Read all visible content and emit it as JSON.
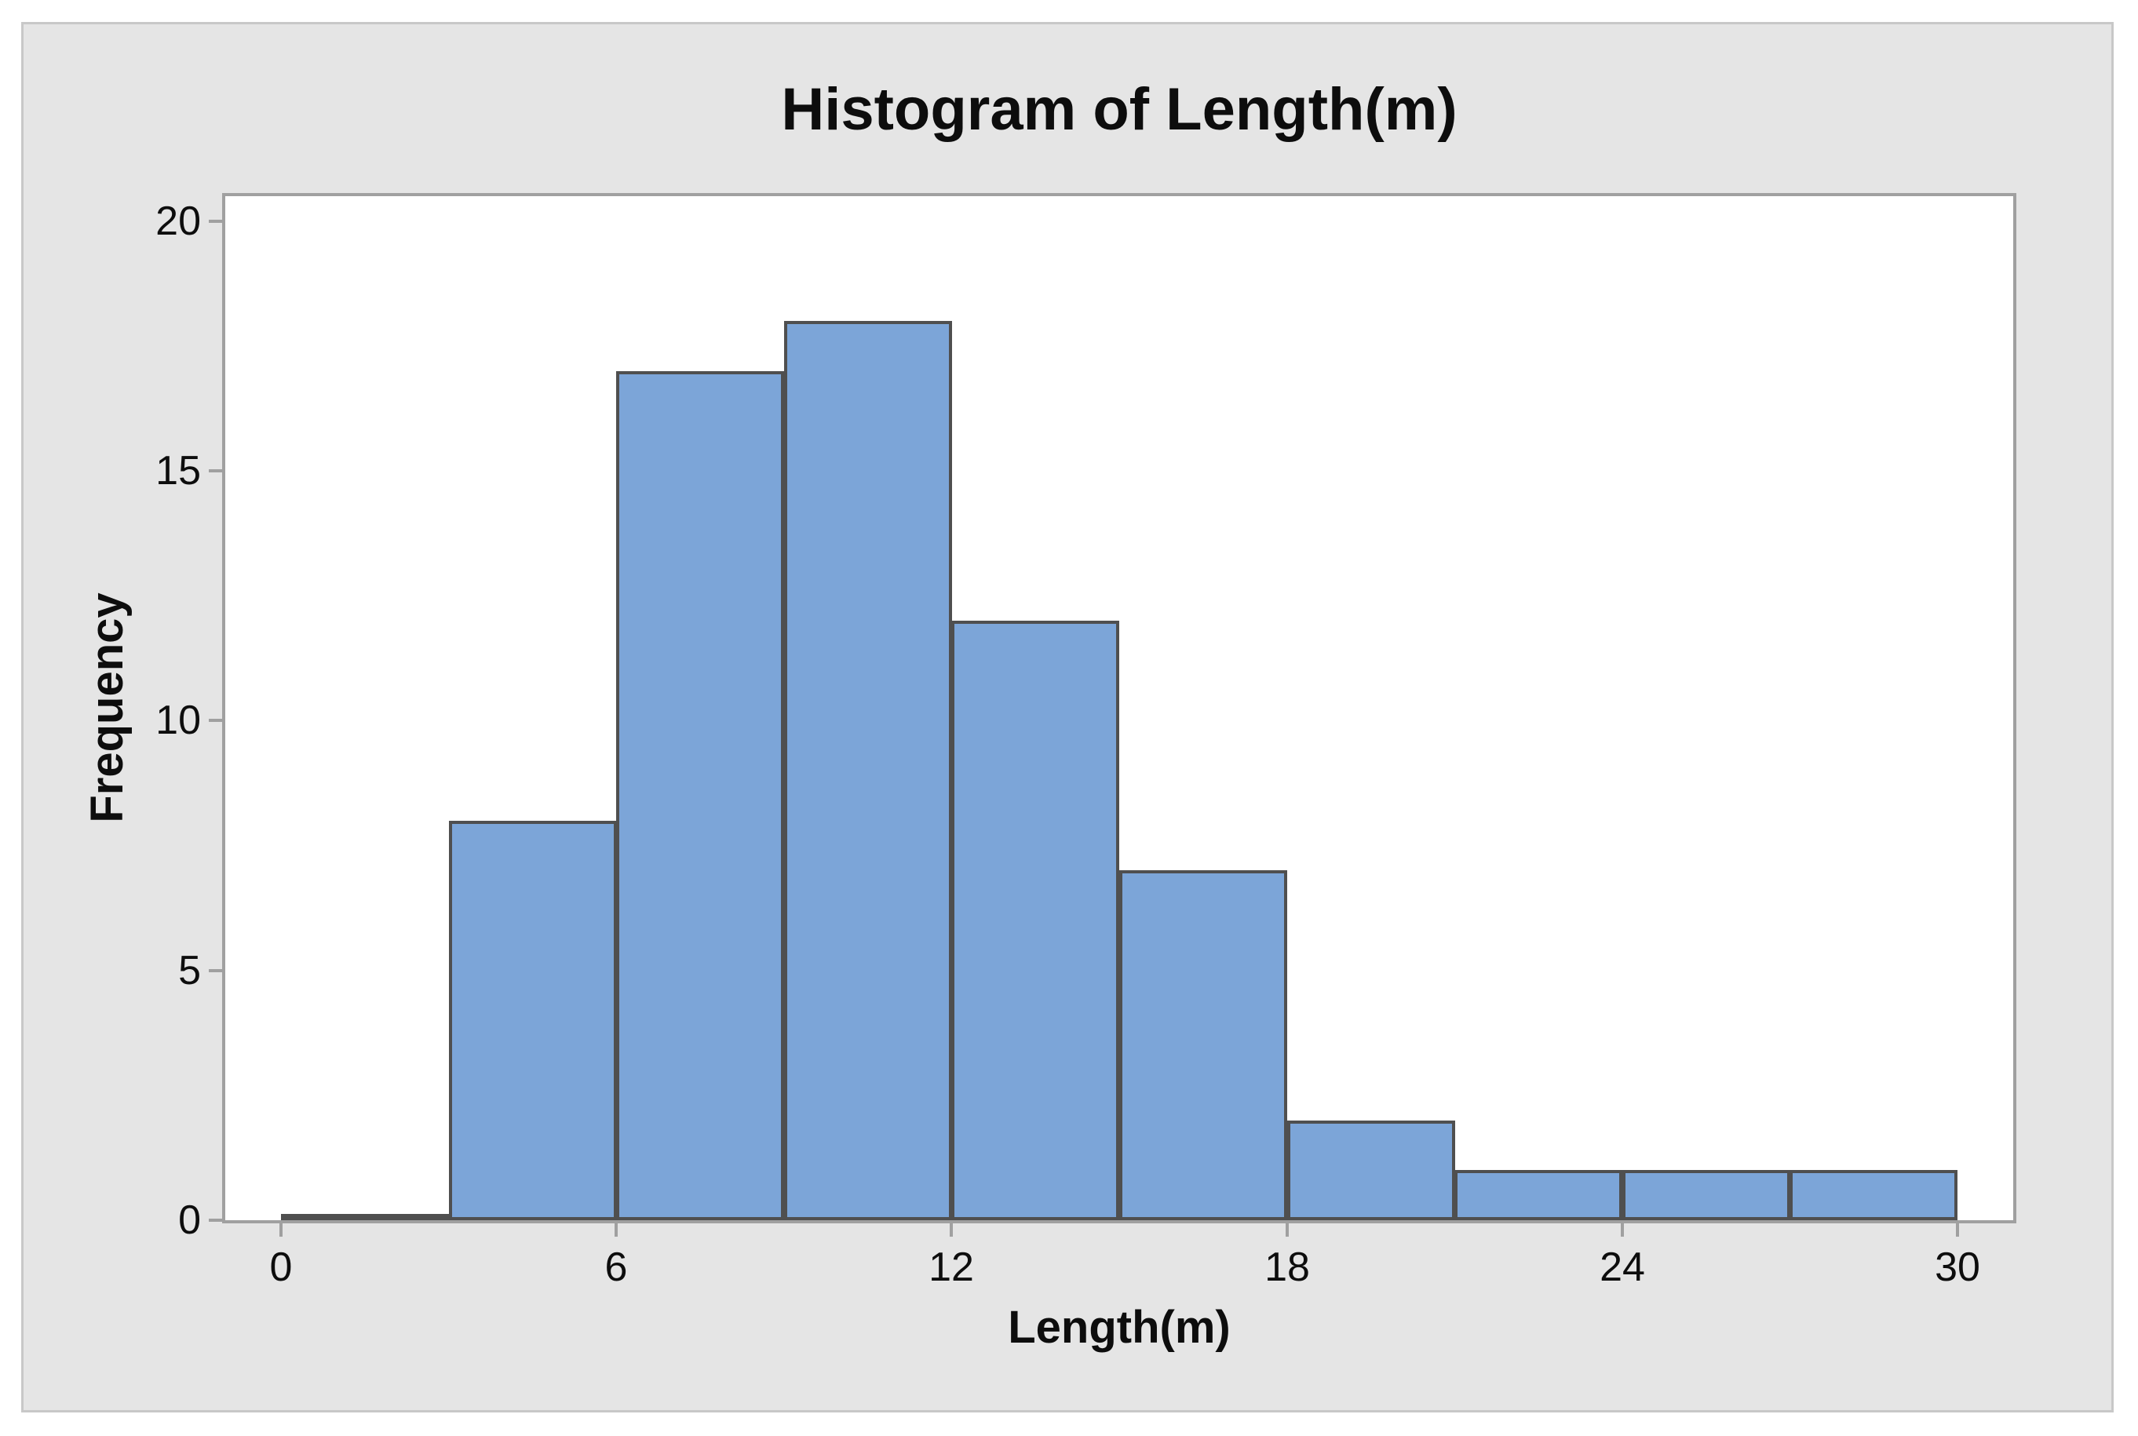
{
  "figure": {
    "background_color": "#E5E5E5",
    "border_color": "#C8C8C8",
    "plot_background_color": "#FFFFFF",
    "axis_color": "#A0A0A0",
    "text_color": "#0D0D0D"
  },
  "chart_data": {
    "type": "bar",
    "subtype": "histogram",
    "title": "Histogram of Length(m)",
    "xlabel": "Length(m)",
    "ylabel": "Frequency",
    "bin_edges": [
      0,
      3,
      6,
      9,
      12,
      15,
      18,
      21,
      24,
      27,
      30
    ],
    "frequencies": [
      0,
      8,
      17,
      18,
      12,
      7,
      2,
      1,
      1,
      1
    ],
    "x_ticks": [
      0,
      6,
      12,
      18,
      24,
      30
    ],
    "y_ticks": [
      0,
      5,
      10,
      15,
      20
    ],
    "xlim": [
      -1,
      31
    ],
    "ylim": [
      0,
      20.5
    ],
    "grid": false,
    "legend_position": "none",
    "bar_fill_color": "#7CA5D8",
    "bar_border_color": "#4F4F4F"
  }
}
